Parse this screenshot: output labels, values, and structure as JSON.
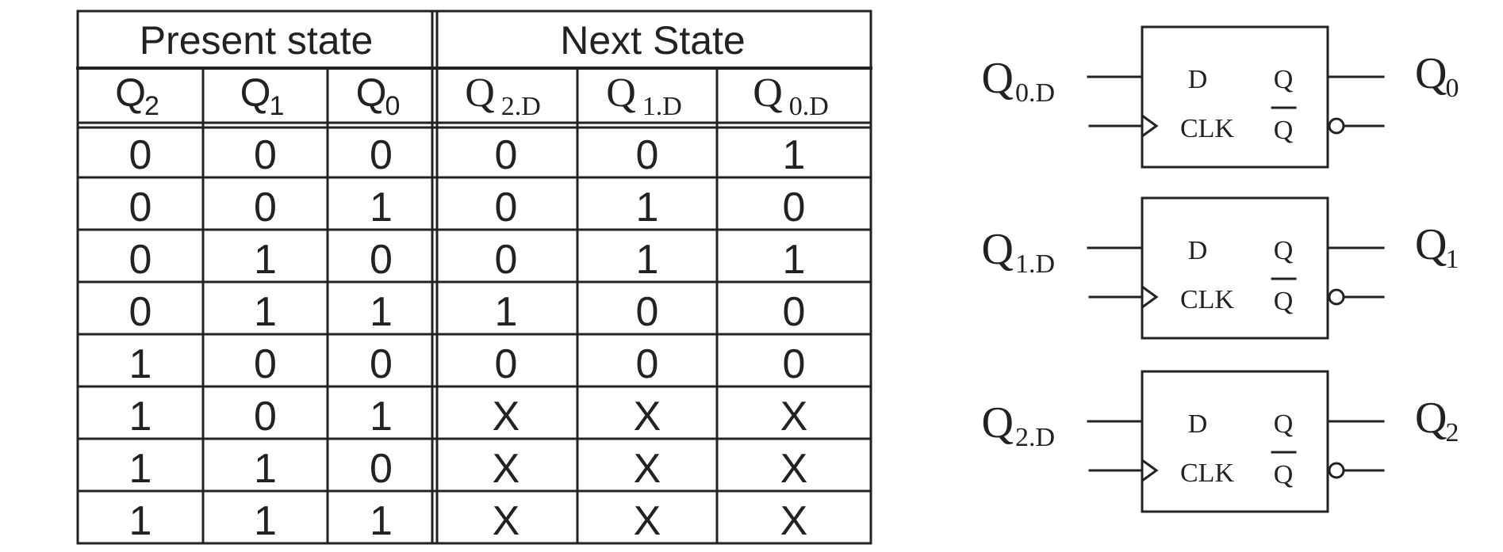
{
  "state_table": {
    "group_headers": [
      "Present state",
      "Next State"
    ],
    "columns": [
      {
        "base": "Q",
        "sub": "2"
      },
      {
        "base": "Q",
        "sub": "1"
      },
      {
        "base": "Q",
        "sub": "0"
      },
      {
        "base": "Q",
        "sub": "2.D"
      },
      {
        "base": "Q",
        "sub": "1.D"
      },
      {
        "base": "Q",
        "sub": "0.D"
      }
    ],
    "rows": [
      [
        "0",
        "0",
        "0",
        "0",
        "0",
        "1"
      ],
      [
        "0",
        "0",
        "1",
        "0",
        "1",
        "0"
      ],
      [
        "0",
        "1",
        "0",
        "0",
        "1",
        "1"
      ],
      [
        "0",
        "1",
        "1",
        "1",
        "0",
        "0"
      ],
      [
        "1",
        "0",
        "0",
        "0",
        "0",
        "0"
      ],
      [
        "1",
        "0",
        "1",
        "X",
        "X",
        "X"
      ],
      [
        "1",
        "1",
        "0",
        "X",
        "X",
        "X"
      ],
      [
        "1",
        "1",
        "1",
        "X",
        "X",
        "X"
      ]
    ]
  },
  "flip_flops": [
    {
      "input": {
        "base": "Q",
        "sub": "0.D"
      },
      "output": {
        "base": "Q",
        "sub": "0"
      },
      "pin_d": "D",
      "pin_clk": "CLK",
      "pin_q": "Q",
      "pin_qbar": "Q"
    },
    {
      "input": {
        "base": "Q",
        "sub": "1.D"
      },
      "output": {
        "base": "Q",
        "sub": "1"
      },
      "pin_d": "D",
      "pin_clk": "CLK",
      "pin_q": "Q",
      "pin_qbar": "Q"
    },
    {
      "input": {
        "base": "Q",
        "sub": "2.D"
      },
      "output": {
        "base": "Q",
        "sub": "2"
      },
      "pin_d": "D",
      "pin_clk": "CLK",
      "pin_q": "Q",
      "pin_qbar": "Q"
    }
  ]
}
